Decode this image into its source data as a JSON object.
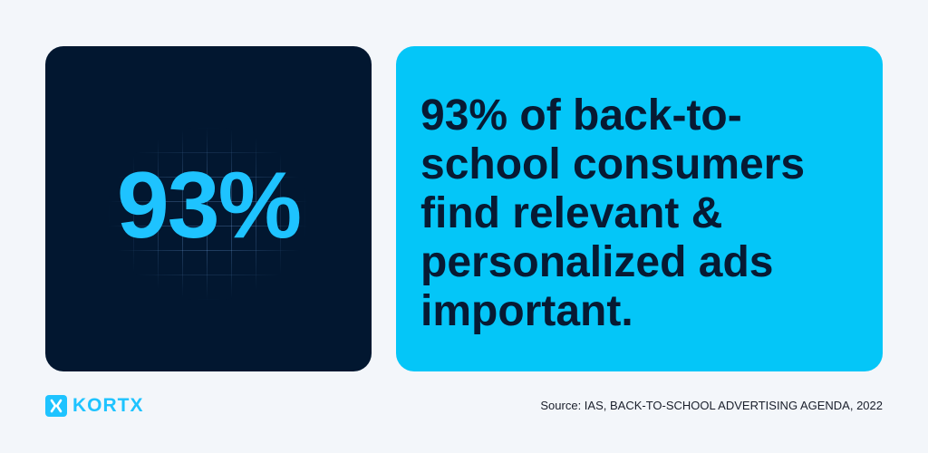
{
  "stat": {
    "value": "93%"
  },
  "headline": "93% of back-to-school consumers find relevant & personalized ads important.",
  "brand": {
    "name": "KORTX",
    "icon": "kortx-logo-icon"
  },
  "source": "Source: IAS, BACK-TO-SCHOOL ADVERTISING AGENDA, 2022",
  "colors": {
    "background": "#f3f6fa",
    "dark_card": "#021730",
    "accent": "#1ec3ff",
    "text_card": "#04c6f8",
    "headline_text": "#071a33"
  }
}
